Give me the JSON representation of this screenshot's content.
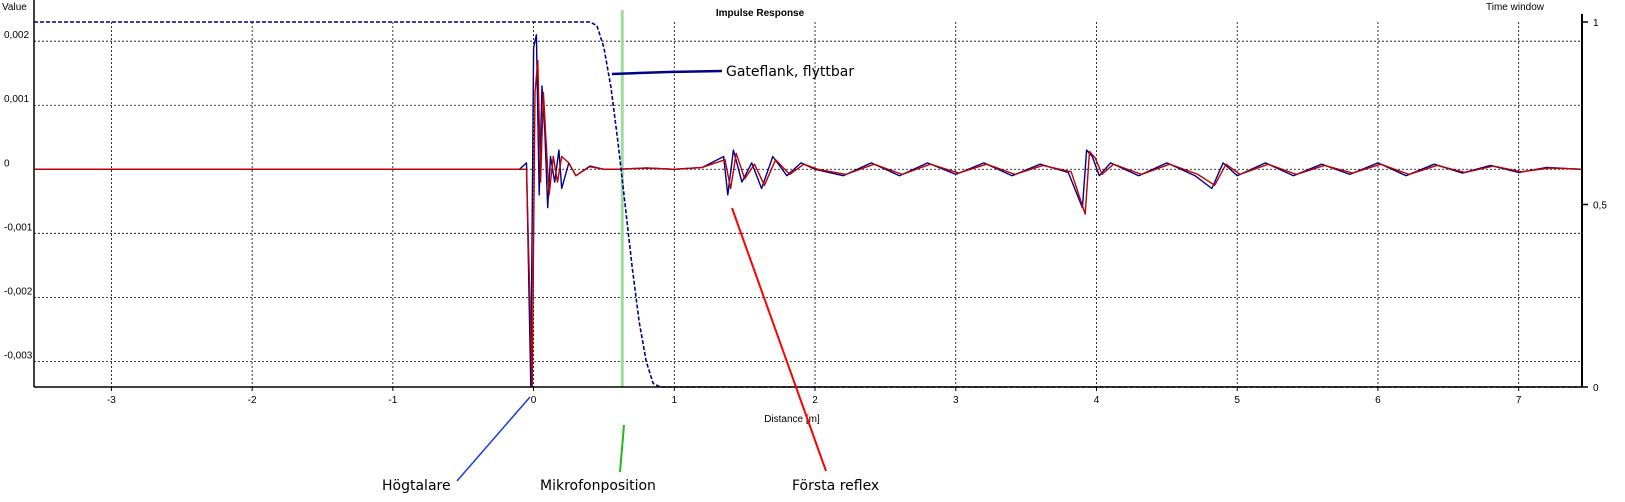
{
  "chart_data": {
    "type": "line",
    "title": "Impulse Response",
    "xlabel": "Distance [m]",
    "ylabel": "Value",
    "y2label": "Time window",
    "xlim": [
      -3.55,
      7.45
    ],
    "ylim": [
      -0.0034,
      0.0023
    ],
    "y2lim": [
      0,
      1
    ],
    "x_ticks": [
      -3,
      -2,
      -1,
      0,
      1,
      2,
      3,
      4,
      5,
      6,
      7
    ],
    "x_tick_labels": [
      "-3",
      "-2",
      "-1",
      "0",
      "1",
      "2",
      "3",
      "4",
      "5",
      "6",
      "7"
    ],
    "y_ticks": [
      0.002,
      0.001,
      0,
      -0.001,
      -0.002,
      -0.003
    ],
    "y_tick_labels": [
      "0,002",
      "0,001",
      "0",
      "-0,001",
      "-0,002",
      "-0,003"
    ],
    "y2_ticks": [
      1,
      0.5,
      0
    ],
    "y2_tick_labels": [
      "1",
      "0,5",
      "0"
    ],
    "grid": true,
    "series": [
      {
        "color": "#00008b",
        "x": [
          -3.55,
          -0.1,
          -0.05,
          -0.02,
          0,
          0.02,
          0.04,
          0.06,
          0.08,
          0.1,
          0.12,
          0.15,
          0.18,
          0.2,
          0.25,
          0.3,
          0.4,
          0.5,
          0.6,
          0.8,
          1.0,
          1.2,
          1.35,
          1.38,
          1.42,
          1.48,
          1.55,
          1.62,
          1.7,
          1.8,
          1.9,
          2.0,
          2.2,
          2.4,
          2.6,
          2.8,
          3.0,
          3.2,
          3.4,
          3.6,
          3.8,
          3.9,
          3.93,
          3.97,
          4.02,
          4.1,
          4.3,
          4.5,
          4.7,
          4.82,
          4.9,
          5.0,
          5.2,
          5.4,
          5.6,
          5.8,
          6.0,
          6.2,
          6.4,
          6.6,
          6.8,
          7.0,
          7.2,
          7.45
        ],
        "y": [
          0,
          0,
          0.0001,
          -0.0034,
          0.0019,
          0.0021,
          -0.0004,
          0.0013,
          0.0006,
          -0.0006,
          0.0002,
          -0.0002,
          0.0003,
          -0.0003,
          0.0001,
          -0.0001,
          5e-05,
          0,
          0,
          2e-05,
          0,
          3e-05,
          0.0002,
          -0.0004,
          0.0003,
          -0.0002,
          0.0001,
          -0.0003,
          0.0002,
          -0.0001,
          0.0001,
          0,
          -0.0001,
          0.0001,
          -0.0001,
          0.0001,
          -8e-05,
          0.0001,
          -0.0001,
          8e-05,
          -5e-05,
          -0.0006,
          0.0003,
          0.0002,
          -0.0001,
          0.0001,
          -0.0001,
          0.0001,
          -0.0001,
          -0.0003,
          0.0001,
          -0.0001,
          0.0001,
          -0.0001,
          8e-05,
          -8e-05,
          0.0001,
          -0.0001,
          8e-05,
          -6e-05,
          6e-05,
          -5e-05,
          3e-05,
          0
        ]
      },
      {
        "color": "#c00000",
        "x": [
          -3.55,
          -0.1,
          -0.05,
          -0.01,
          0.01,
          0.03,
          0.05,
          0.07,
          0.09,
          0.11,
          0.14,
          0.17,
          0.2,
          0.25,
          0.3,
          0.4,
          0.5,
          0.6,
          0.8,
          1.0,
          1.2,
          1.36,
          1.4,
          1.44,
          1.5,
          1.57,
          1.64,
          1.72,
          1.82,
          1.92,
          2.02,
          2.22,
          2.42,
          2.62,
          2.82,
          3.02,
          3.22,
          3.42,
          3.62,
          3.82,
          3.92,
          3.95,
          3.99,
          4.04,
          4.12,
          4.32,
          4.52,
          4.72,
          4.84,
          4.92,
          5.02,
          5.22,
          5.42,
          5.62,
          5.82,
          6.02,
          6.22,
          6.42,
          6.62,
          6.82,
          7.02,
          7.22,
          7.45
        ],
        "y": [
          0,
          0,
          0,
          -0.0034,
          0.0012,
          0.0017,
          -0.0002,
          0.0012,
          0.0004,
          -0.0004,
          0.0002,
          -0.0002,
          0.0002,
          0.0001,
          -0.0001,
          4e-05,
          0,
          0,
          2e-05,
          0,
          3e-05,
          0.00015,
          -0.0003,
          0.00025,
          -0.00015,
          8e-05,
          -0.00025,
          0.00015,
          -8e-05,
          8e-05,
          0,
          -8e-05,
          8e-05,
          -8e-05,
          8e-05,
          -6e-05,
          8e-05,
          -8e-05,
          6e-05,
          -4e-05,
          -0.0007,
          0.00028,
          0.00018,
          -8e-05,
          8e-05,
          -8e-05,
          8e-05,
          -8e-05,
          -0.00025,
          8e-05,
          -8e-05,
          8e-05,
          -8e-05,
          6e-05,
          -6e-05,
          8e-05,
          -8e-05,
          6e-05,
          -5e-05,
          5e-05,
          -4e-05,
          2e-05,
          0
        ]
      },
      {
        "color": "#00008b",
        "dashed": true,
        "axis": "y2",
        "x": [
          -3.55,
          0.4,
          0.45,
          0.5,
          0.55,
          0.6,
          0.65,
          0.7,
          0.75,
          0.8,
          0.85,
          0.9,
          0.95,
          7.45
        ],
        "y": [
          1,
          1,
          0.99,
          0.93,
          0.82,
          0.67,
          0.5,
          0.33,
          0.18,
          0.07,
          0.01,
          0,
          0,
          0
        ]
      }
    ],
    "annotations": [
      {
        "text": "Gateflank, flyttbar",
        "color": "#00008b"
      },
      {
        "text": "Högtalare",
        "color": "#1a3fd6"
      },
      {
        "text": "Mikrofonposition",
        "color": "#22b822"
      },
      {
        "text": "Första reflex",
        "color": "#ff0000"
      }
    ],
    "microphone_x": 0.63
  }
}
